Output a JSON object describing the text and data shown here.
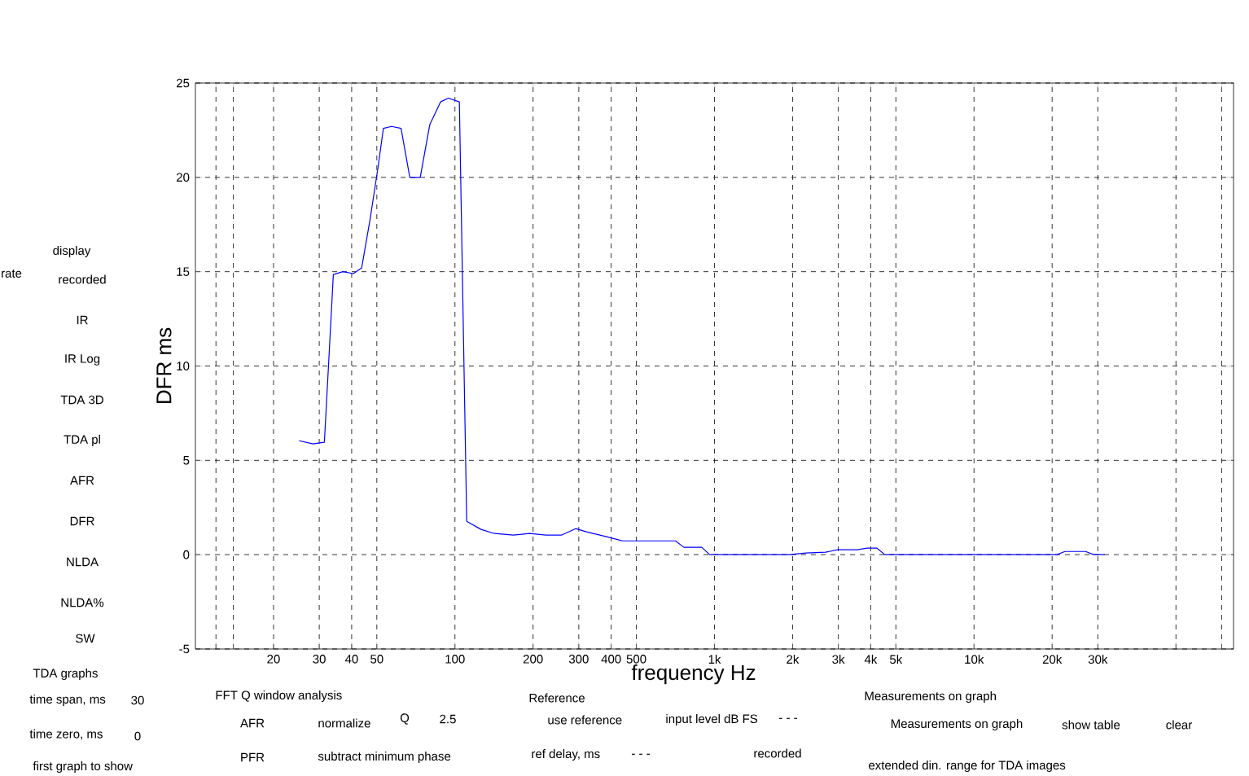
{
  "chart_data": {
    "type": "line",
    "xlabel": "frequency   Hz",
    "ylabel": "DFR ms",
    "log": "x",
    "grid": true,
    "line_style": "solid",
    "marker": "none",
    "xlim": [
      10,
      100000
    ],
    "ylim": [
      -5,
      25
    ],
    "xticks": [
      {
        "value": 12,
        "label": null
      },
      {
        "value": 14,
        "label": null
      },
      20,
      30,
      40,
      50,
      100,
      200,
      300,
      400,
      500,
      {
        "value": 1000,
        "label": "1k"
      },
      {
        "value": 2000,
        "label": "2k"
      },
      {
        "value": 3000,
        "label": "3k"
      },
      {
        "value": 4000,
        "label": "4k"
      },
      {
        "value": 5000,
        "label": "5k"
      },
      {
        "value": 10000,
        "label": "10k"
      },
      {
        "value": 20000,
        "label": "20k"
      },
      {
        "value": 30000,
        "label": "30k"
      },
      {
        "value": 60000,
        "label": null
      },
      {
        "value": 90000,
        "label": null
      }
    ],
    "yticks": [
      -5,
      0,
      5,
      10,
      15,
      20,
      25
    ],
    "series": [
      {
        "color": "#0000ff",
        "x": [
          25.1,
          28.4,
          31.4,
          32.8,
          34,
          37,
          40.6,
          43.7,
          47,
          50.5,
          53,
          57,
          62,
          67,
          73.5,
          80,
          88,
          94.4,
          104,
          107,
          111,
          126,
          142,
          168,
          194,
          224,
          258,
          292,
          321,
          384,
          443,
          708,
          762,
          893,
          958,
          1950,
          2250,
          2680,
          2985,
          3560,
          3870,
          4220,
          4530,
          20900,
          22400,
          26900,
          28900,
          31900
        ],
        "values": [
          6.04,
          5.87,
          5.96,
          10.8,
          14.85,
          15.0,
          14.9,
          15.2,
          17.7,
          20.5,
          22.6,
          22.7,
          22.6,
          20.0,
          20.0,
          22.8,
          24.0,
          24.2,
          24.0,
          14.3,
          1.77,
          1.34,
          1.12,
          1.04,
          1.12,
          1.04,
          1.04,
          1.38,
          1.21,
          0.95,
          0.73,
          0.73,
          0.39,
          0.39,
          0,
          0,
          0.09,
          0.13,
          0.26,
          0.26,
          0.35,
          0.35,
          0,
          0,
          0.17,
          0.17,
          0,
          0
        ]
      }
    ],
    "annotations": [
      "display",
      "recorded",
      "IR",
      "IR Log",
      "TDA 3D",
      "TDA pl",
      "AFR",
      "DFR",
      "NLDA",
      "NLDA%",
      "SW",
      "rate",
      "TDA graphs",
      "time span, ms",
      "30",
      "time zero, ms",
      "0",
      "first graph to show",
      "FFT Q window analysis",
      "AFR",
      "normalize",
      "Q",
      "2.5",
      "PFR",
      "subtract minimum phase",
      "Reference",
      "use reference",
      "input level dB FS",
      "- - -",
      "ref delay, ms",
      "- - -",
      "recorded",
      "Measurements on graph",
      "Measurements on graph",
      "show table",
      "clear",
      "extended din. range for TDA images"
    ]
  }
}
